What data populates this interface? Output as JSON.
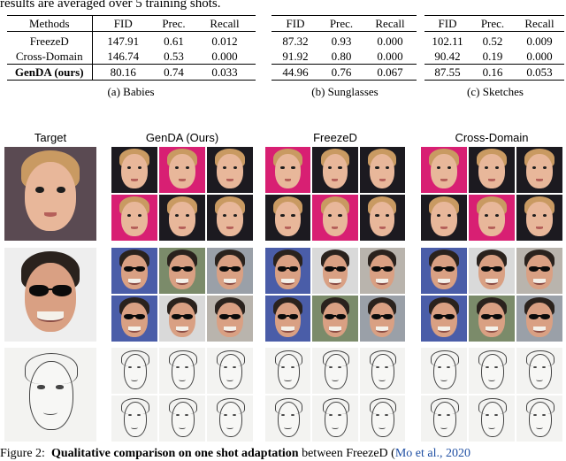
{
  "intro_text": "results are averaged over 5 training shots.",
  "tables": [
    {
      "caption": "(a) Babies",
      "columns": [
        "Methods",
        "FID",
        "Prec.",
        "Recall"
      ],
      "rows": [
        {
          "method": "FreezeD",
          "fid": "147.91",
          "prec": "0.61",
          "recall": "0.012"
        },
        {
          "method": "Cross-Domain",
          "fid": "146.74",
          "prec": "0.53",
          "recall": "0.000"
        },
        {
          "method": "GenDA (ours)",
          "fid": "80.16",
          "prec": "0.74",
          "recall": "0.033"
        }
      ]
    },
    {
      "caption": "(b) Sunglasses",
      "columns": [
        "FID",
        "Prec.",
        "Recall"
      ],
      "rows": [
        {
          "fid": "87.32",
          "prec": "0.93",
          "recall": "0.000"
        },
        {
          "fid": "91.92",
          "prec": "0.80",
          "recall": "0.000"
        },
        {
          "fid": "44.96",
          "prec": "0.76",
          "recall": "0.067"
        }
      ]
    },
    {
      "caption": "(c) Sketches",
      "columns": [
        "FID",
        "Prec.",
        "Recall"
      ],
      "rows": [
        {
          "fid": "102.11",
          "prec": "0.52",
          "recall": "0.009"
        },
        {
          "fid": "90.42",
          "prec": "0.19",
          "recall": "0.000"
        },
        {
          "fid": "87.55",
          "prec": "0.16",
          "recall": "0.053"
        }
      ]
    }
  ],
  "figure": {
    "column_headers": [
      "Target",
      "GenDA (Ours)",
      "FreezeD",
      "Cross-Domain"
    ],
    "caption_prefix": "Figure 2:",
    "caption_bold": "Qualitative comparison on one shot adaptation",
    "caption_rest": " between FreezeD (",
    "caption_cite": "Mo et al., 2020"
  },
  "colors": {
    "baby_skin": "#e8b79a",
    "baby_hair": "#c99a62",
    "bg_pink": "#d81f73",
    "bg_dark": "#1c1a20",
    "sun_skin": "#d9a083",
    "sun_hair": "#2a221d",
    "bg_blue": "#4a5da8",
    "sketch_line": "#444444",
    "citation": "#1f4fa3"
  }
}
